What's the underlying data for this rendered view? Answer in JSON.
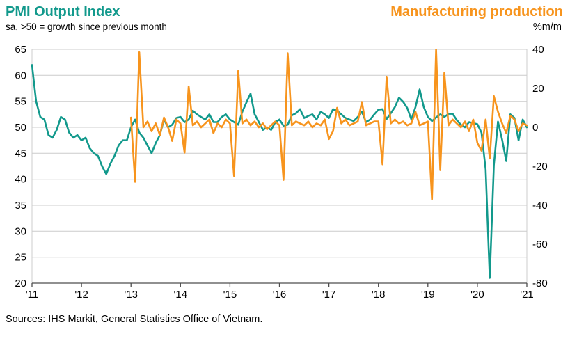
{
  "header": {
    "left_title": "PMI Output Index",
    "left_subtitle": "sa, >50 = growth since previous month",
    "right_title": "Manufacturing production",
    "right_subtitle": "%m/m"
  },
  "footer": {
    "source": "Sources: IHS Markit, General Statistics Office of Vietnam."
  },
  "colors": {
    "teal": "#12998C",
    "orange": "#F7941D",
    "grid": "#cccccc",
    "axis": "#4d4d4d"
  },
  "chart_data": {
    "type": "line",
    "title": "PMI Output Index vs Manufacturing production",
    "x_start": "2011-01",
    "x_end": "2021-01",
    "x_tick_labels": [
      "'11",
      "'12",
      "'13",
      "'14",
      "'15",
      "'16",
      "'17",
      "'18",
      "'19",
      "'20",
      "'21"
    ],
    "left_axis": {
      "label": "PMI Output Index (sa, >50 = growth since previous month)",
      "min": 20,
      "max": 65,
      "ticks": [
        65,
        60,
        55,
        50,
        45,
        40,
        35,
        30,
        25,
        20
      ]
    },
    "right_axis": {
      "label": "Manufacturing production, %m/m",
      "min": -80,
      "max": 40,
      "ticks": [
        40,
        20,
        0,
        -20,
        -40,
        -60,
        -80
      ]
    },
    "grid": true,
    "legend_position": "top",
    "series": [
      {
        "name": "PMI Output Index",
        "axis": "left",
        "color": "#12998C",
        "values": [
          62.0,
          55.0,
          52.0,
          51.5,
          48.5,
          48.0,
          49.5,
          52.0,
          51.5,
          49.0,
          48.0,
          48.5,
          47.5,
          48.0,
          46.0,
          45.0,
          44.5,
          42.5,
          41.0,
          43.0,
          44.5,
          46.5,
          47.5,
          47.5,
          50.0,
          51.5,
          49.0,
          48.0,
          46.5,
          45.0,
          47.0,
          48.5,
          51.5,
          50.0,
          50.5,
          51.8,
          52.0,
          51.0,
          51.5,
          53.2,
          52.5,
          52.0,
          51.5,
          52.5,
          51.0,
          51.0,
          52.0,
          52.5,
          51.5,
          51.0,
          50.5,
          53.0,
          54.8,
          56.5,
          52.5,
          51.0,
          49.5,
          50.0,
          49.5,
          51.0,
          51.5,
          50.3,
          50.5,
          52.3,
          52.7,
          53.5,
          51.8,
          52.2,
          52.5,
          51.5,
          53.0,
          52.5,
          51.8,
          53.5,
          53.2,
          52.5,
          51.8,
          51.5,
          51.2,
          52.0,
          53.0,
          51.0,
          51.5,
          52.5,
          53.4,
          53.5,
          51.6,
          52.7,
          53.9,
          55.7,
          54.9,
          53.7,
          51.5,
          53.9,
          57.3,
          53.9,
          52.0,
          51.2,
          51.9,
          52.5,
          52.0,
          52.6,
          52.6,
          51.4,
          50.5,
          50.0,
          51.0,
          50.8,
          50.6,
          49.0,
          41.9,
          21.0,
          42.7,
          51.1,
          47.6,
          43.5,
          52.5,
          51.8,
          47.5,
          51.5,
          50.0
        ]
      },
      {
        "name": "Manufacturing production",
        "axis": "right",
        "color": "#F7941D",
        "values": [
          null,
          null,
          null,
          null,
          null,
          null,
          null,
          null,
          null,
          null,
          null,
          null,
          null,
          null,
          null,
          null,
          null,
          null,
          null,
          null,
          null,
          null,
          null,
          null,
          5,
          -28,
          38.5,
          0,
          3,
          -2,
          2,
          -4,
          5,
          0,
          -7,
          4,
          2,
          -13,
          21,
          1,
          3,
          0,
          2,
          4,
          -3,
          2,
          0,
          4,
          2,
          -25,
          29,
          2,
          4,
          1,
          3,
          0,
          2,
          -1,
          1,
          3,
          1,
          -27,
          38,
          1,
          3,
          2,
          1,
          3,
          0,
          2,
          1,
          4,
          -6,
          -2,
          10,
          2,
          4,
          1,
          2,
          3,
          13,
          1,
          2,
          3,
          3,
          -19,
          26,
          2,
          4,
          2,
          3,
          1,
          2,
          8,
          1,
          2,
          3,
          -37,
          40,
          -22,
          28,
          1,
          4,
          2,
          0,
          3,
          -2,
          4,
          -8,
          -12,
          4,
          -16,
          16,
          8,
          2,
          -3,
          6,
          4,
          -2,
          2,
          1
        ]
      }
    ]
  }
}
